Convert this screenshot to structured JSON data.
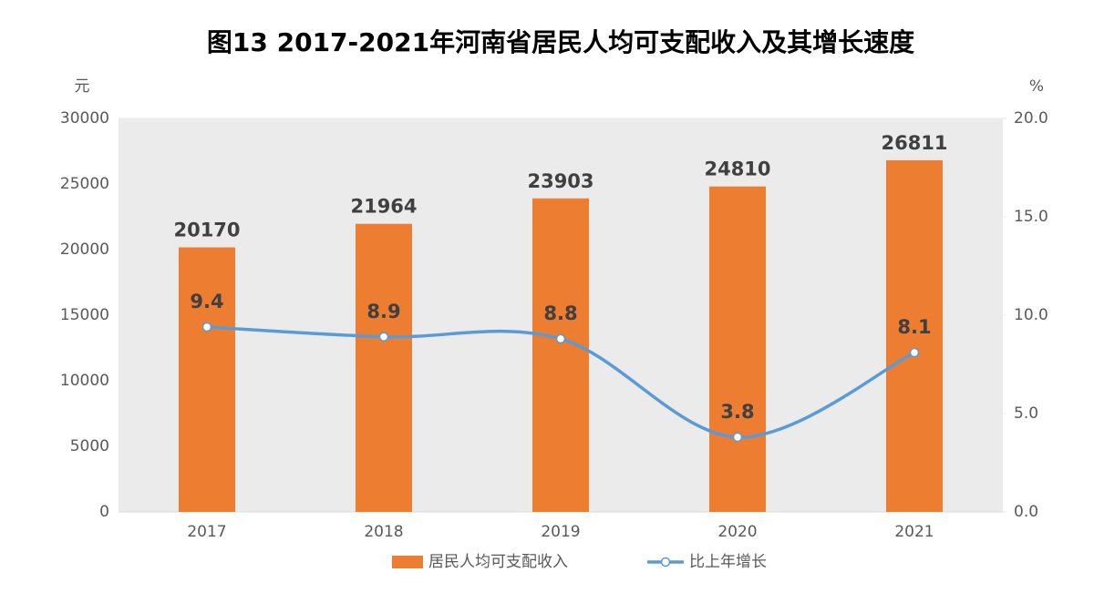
{
  "chart_data": {
    "type": "bar",
    "title": "图13 2017-2021年河南省居民人均可支配收入及其增长速度",
    "y_unit": "元",
    "y2_unit": "%",
    "categories": [
      "2017",
      "2018",
      "2019",
      "2020",
      "2021"
    ],
    "series": [
      {
        "name": "居民人均可支配收入",
        "type": "bar",
        "color": "#ed7d31",
        "values": [
          20170,
          21964,
          23903,
          24810,
          26811
        ]
      },
      {
        "name": "比上年增长",
        "type": "line",
        "axis": "y2",
        "color": "#5b9bd5",
        "values": [
          9.4,
          8.9,
          8.8,
          3.8,
          8.1
        ]
      }
    ],
    "ylim": [
      0,
      30000
    ],
    "yticks": [
      0,
      5000,
      10000,
      15000,
      20000,
      25000,
      30000
    ],
    "y2lim": [
      0,
      20
    ],
    "y2ticks": [
      {
        "value": 0,
        "label": "0.0"
      },
      {
        "value": 5,
        "label": "5.0"
      },
      {
        "value": 10,
        "label": "10.0"
      },
      {
        "value": 15,
        "label": "15.0"
      },
      {
        "value": 20,
        "label": "20.0"
      }
    ],
    "legend": "bottom"
  }
}
